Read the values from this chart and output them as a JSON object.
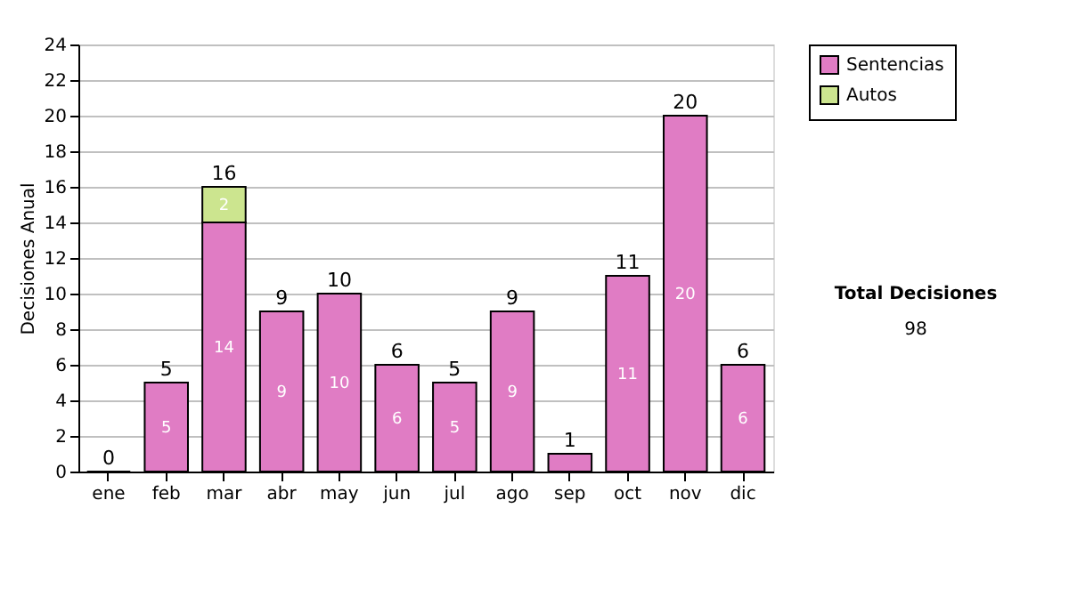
{
  "chart_data": {
    "type": "bar",
    "stacked": true,
    "categories": [
      "ene",
      "feb",
      "mar",
      "abr",
      "may",
      "jun",
      "jul",
      "ago",
      "sep",
      "oct",
      "nov",
      "dic"
    ],
    "series": [
      {
        "name": "Sentencias",
        "color": "#e07cc4",
        "values": [
          0,
          5,
          14,
          9,
          10,
          6,
          5,
          9,
          1,
          11,
          20,
          6
        ],
        "value_labels": [
          null,
          "5",
          "14",
          "9",
          "10",
          "6",
          "5",
          "9",
          null,
          "11",
          "20",
          "6"
        ]
      },
      {
        "name": "Autos",
        "color": "#cce58f",
        "values": [
          null,
          null,
          2,
          null,
          null,
          null,
          null,
          null,
          null,
          null,
          null,
          null
        ],
        "value_labels": [
          null,
          null,
          "2",
          null,
          null,
          null,
          null,
          null,
          null,
          null,
          null,
          null
        ]
      }
    ],
    "totals": [
      "0",
      "5",
      "16",
      "9",
      "10",
      "6",
      "5",
      "9",
      "1",
      "11",
      "20",
      "6"
    ],
    "ylabel": "Decisiones Anual",
    "ylim": [
      0,
      24
    ],
    "yticks": [
      0,
      2,
      4,
      6,
      8,
      10,
      12,
      14,
      16,
      18,
      20,
      22,
      24
    ],
    "grid": "y",
    "legend": "right",
    "annotations": [
      "Total Decisiones",
      "98"
    ]
  }
}
